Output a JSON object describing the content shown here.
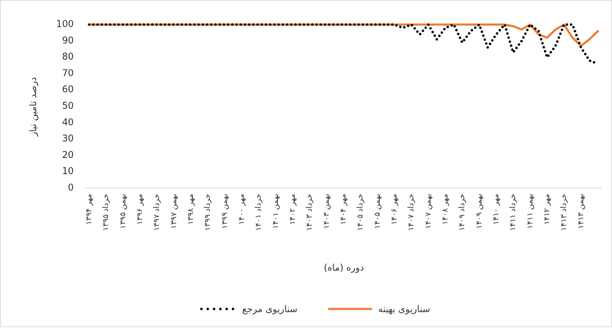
{
  "chart_data": {
    "type": "line",
    "y_label": "درصد تامین نیاز",
    "x_label": "دوره (ماه)",
    "categories": [
      "مهر ۱۳۹۴",
      null,
      "خرداد ۱۳۹۵",
      null,
      "بهمن ۱۳۹۵",
      null,
      "مهر ۱۳۹۶",
      null,
      "خرداد ۱۳۹۷",
      null,
      "بهمن ۱۳۹۷",
      null,
      "مهر ۱۳۹۸",
      null,
      "خرداد ۱۳۹۹",
      null,
      "بهمن ۱۳۹۹",
      null,
      "مهر ۱۴۰۰",
      null,
      "خرداد ۱۴۰۱",
      null,
      "بهمن ۱۴۰۱",
      null,
      "مهر ۱۴۰۲",
      null,
      "خرداد ۱۴۰۳",
      null,
      "بهمن ۱۴۰۳",
      null,
      "مهر ۱۴۰۴",
      null,
      "خرداد ۱۴۰۵",
      null,
      "بهمن ۱۴۰۵",
      null,
      "مهر ۱۴۰۶",
      null,
      "خرداد ۱۴۰۷",
      null,
      "بهمن ۱۴۰۷",
      null,
      "مهر ۱۴۰۸",
      null,
      "خرداد ۱۴۰۹",
      null,
      "بهمن ۱۴۰۹",
      null,
      "مهر ۱۴۱۰",
      null,
      "خرداد ۱۴۱۱",
      null,
      "بهمن ۱۴۱۱",
      null,
      "مهر ۱۴۱۲",
      null,
      "خرداد ۱۴۱۳",
      null,
      "بهمن ۱۴۱۳",
      null,
      null
    ],
    "series": [
      {
        "name": "سناریوی بهینه",
        "color": "#ed7d31",
        "style": "solid",
        "values": [
          100,
          100,
          100,
          100,
          100,
          100,
          100,
          100,
          100,
          100,
          100,
          100,
          100,
          100,
          100,
          100,
          100,
          100,
          100,
          100,
          100,
          100,
          100,
          100,
          100,
          100,
          100,
          100,
          100,
          100,
          100,
          100,
          100,
          100,
          100,
          100,
          100,
          100,
          100,
          100,
          100,
          100,
          100,
          100,
          100,
          100,
          100,
          100,
          100,
          100,
          99,
          97,
          100,
          94,
          92,
          97,
          100,
          92,
          87,
          91,
          96
        ]
      },
      {
        "name": "سناریوی مرجع",
        "color": "#000000",
        "style": "dotted",
        "values": [
          100,
          100,
          100,
          100,
          100,
          100,
          100,
          100,
          100,
          100,
          100,
          100,
          100,
          100,
          100,
          100,
          100,
          100,
          100,
          100,
          100,
          100,
          100,
          100,
          100,
          100,
          100,
          100,
          100,
          100,
          100,
          100,
          100,
          100,
          100,
          100,
          100,
          98,
          100,
          94,
          100,
          91,
          98,
          100,
          89,
          96,
          100,
          86,
          94,
          100,
          83,
          90,
          100,
          96,
          80,
          87,
          100,
          100,
          86,
          78,
          76
        ]
      }
    ],
    "ylim": [
      0,
      100
    ],
    "yticks": [
      0,
      10,
      20,
      30,
      40,
      50,
      60,
      70,
      80,
      90,
      100
    ],
    "grid": false,
    "legend": "bottom"
  }
}
